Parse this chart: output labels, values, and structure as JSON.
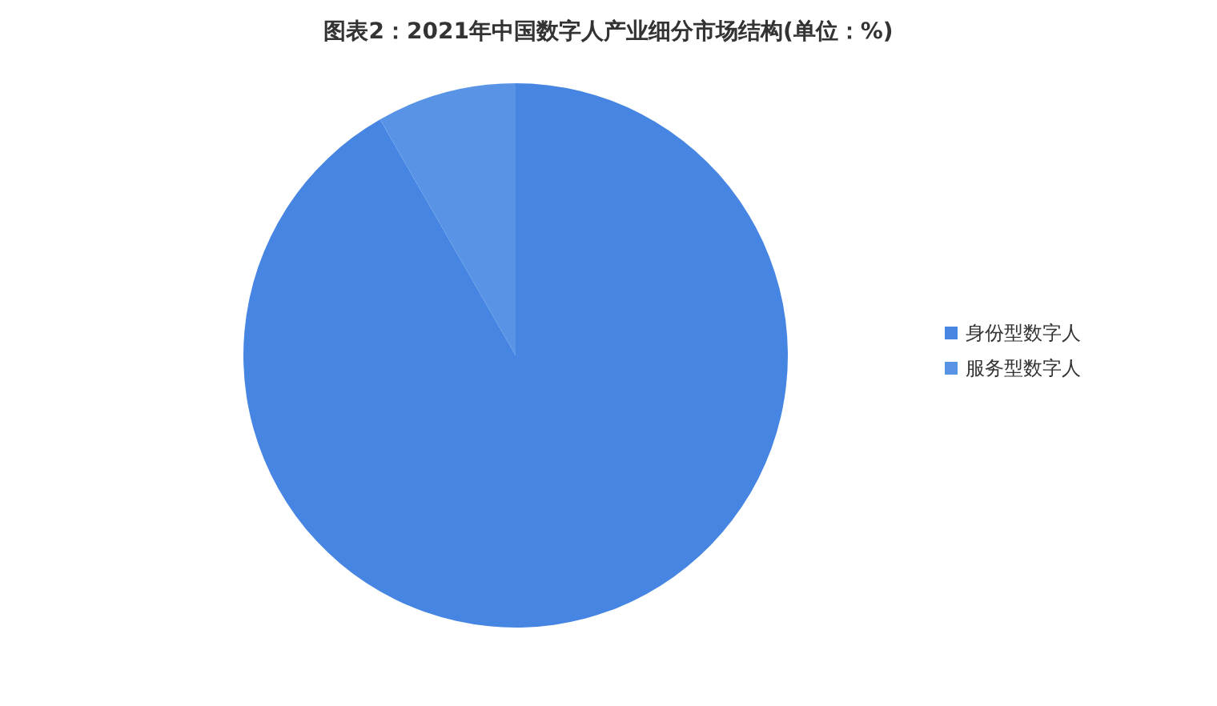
{
  "chart_data": {
    "type": "pie",
    "title": "图表2：2021年中国数字人产业细分市场结构(单位：%)",
    "categories": [
      "身份型数字人",
      "服务型数字人"
    ],
    "values": [
      91.7,
      8.3
    ],
    "colors": [
      "#4686e2",
      "#5893e6"
    ],
    "legend": "right"
  }
}
